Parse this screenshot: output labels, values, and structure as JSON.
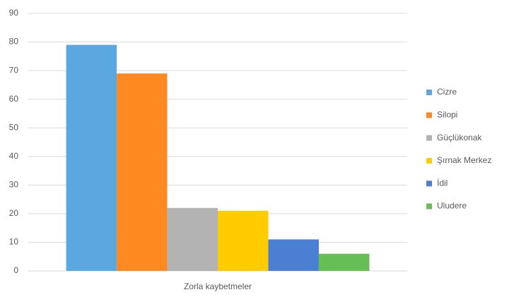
{
  "chart_data": {
    "type": "bar",
    "categories": [
      "Zorla kaybetmeler"
    ],
    "series": [
      {
        "name": "Cizre",
        "color": "#5ba7e0",
        "values": [
          79
        ]
      },
      {
        "name": "Silopi",
        "color": "#ff8a22",
        "values": [
          69
        ]
      },
      {
        "name": "Güçlükonak",
        "color": "#b3b3b3",
        "values": [
          22
        ]
      },
      {
        "name": "Şırnak Merkez",
        "color": "#ffcc00",
        "values": [
          21
        ]
      },
      {
        "name": "İdil",
        "color": "#4a7fd4",
        "values": [
          11
        ]
      },
      {
        "name": "Uludere",
        "color": "#66bf55",
        "values": [
          6
        ]
      }
    ],
    "ylim": [
      0,
      90
    ],
    "yticks": [
      0,
      10,
      20,
      30,
      40,
      50,
      60,
      70,
      80,
      90
    ],
    "grid": true,
    "legend": "right"
  }
}
